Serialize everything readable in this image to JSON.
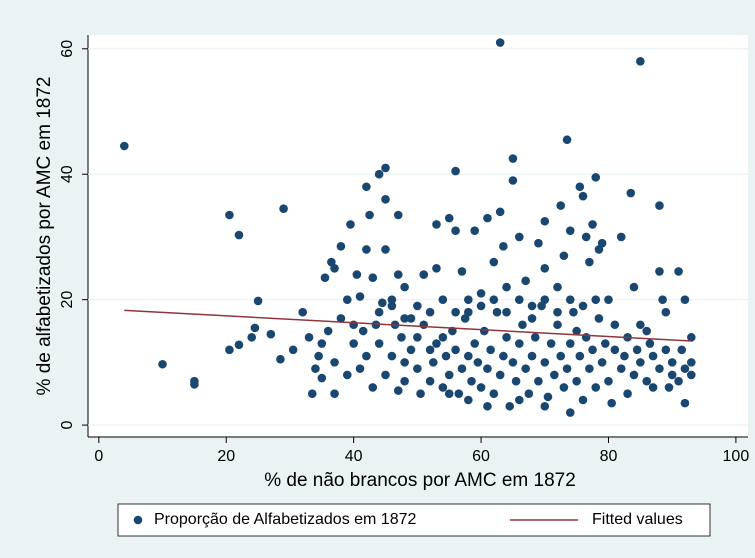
{
  "chart_data": {
    "type": "scatter",
    "x_label": "% de não brancos por AMC em 1872",
    "y_label": "% de alfabetizados por AMC em 1872",
    "xlim": [
      -1.7,
      101.9
    ],
    "ylim": [
      -1.9,
      62.2
    ],
    "xticks": [
      0,
      20,
      40,
      60,
      80,
      100
    ],
    "yticks": [
      0,
      20,
      40,
      60
    ],
    "grid": "y",
    "legend": "bottom",
    "series": [
      {
        "name": "Proporção de Alfabetizados em 1872",
        "color": "#1a476f",
        "type": "scatter",
        "x": [
          4,
          10,
          15,
          15,
          20.5,
          22,
          20.5,
          22,
          25,
          24.5,
          24,
          27,
          29,
          28.5,
          30.5,
          32,
          33,
          33.5,
          34,
          34.5,
          35,
          35.5,
          36,
          36.5,
          37,
          37,
          38,
          39,
          39.5,
          40,
          40.5,
          41,
          41.5,
          42,
          42,
          42.5,
          43,
          43.5,
          44,
          44.5,
          45,
          45,
          45,
          46,
          46.5,
          47,
          47,
          48,
          48,
          49,
          50,
          51,
          52,
          53,
          53,
          54,
          55,
          56,
          56,
          57,
          58,
          59,
          60,
          61,
          62,
          63,
          63,
          63.5,
          64,
          65,
          65,
          66,
          67,
          68,
          69,
          70,
          70,
          72,
          72.5,
          73,
          73.5,
          74,
          74,
          75,
          75.5,
          76,
          76.5,
          77,
          77.5,
          78,
          78.5,
          79,
          80,
          81,
          82,
          83,
          83.5,
          84,
          85,
          85,
          86,
          87,
          88,
          88,
          88.5,
          89,
          90,
          91,
          91.5,
          92,
          92,
          93,
          93,
          41,
          42,
          43,
          44,
          45,
          46,
          47,
          47.5,
          48,
          49,
          50,
          50.5,
          51,
          52,
          52.5,
          53,
          54,
          54.5,
          55,
          55.5,
          56,
          56.5,
          57,
          57.5,
          58,
          58.5,
          59,
          59.5,
          60,
          60.5,
          61,
          61.5,
          62,
          62.5,
          63,
          63.5,
          64,
          64.5,
          65,
          65.5,
          66,
          66.5,
          67,
          67.5,
          68,
          68.5,
          69,
          69.5,
          70,
          70.5,
          71,
          71.5,
          72,
          72.5,
          73,
          73.5,
          74,
          74.5,
          75,
          75.5,
          76,
          76.5,
          77,
          77.5,
          78,
          78.5,
          79,
          79.5,
          80,
          80.5,
          81,
          82,
          82.5,
          83,
          84,
          84.5,
          85,
          86,
          86.5,
          87,
          88,
          89,
          89.5,
          90,
          91,
          92,
          93,
          44,
          46,
          48,
          50,
          52,
          54,
          56,
          58,
          60,
          62,
          64,
          66,
          68,
          70,
          72,
          74,
          76,
          78,
          55,
          58,
          61,
          66,
          70,
          35,
          37,
          38,
          39,
          40
        ],
        "values": [
          44.5,
          9.7,
          6.5,
          7,
          33.5,
          30.3,
          12,
          12.8,
          19.8,
          15.5,
          14,
          14.5,
          34.5,
          10.5,
          12,
          18,
          14,
          5,
          9,
          11,
          7.5,
          23.5,
          15,
          26,
          5,
          25,
          28.5,
          20,
          32,
          13,
          24,
          20.5,
          15,
          38,
          28,
          33.5,
          23.5,
          16,
          40,
          19.5,
          41,
          36,
          28,
          20,
          16,
          33.5,
          24,
          22,
          10,
          17,
          14,
          24,
          12,
          32,
          25,
          14,
          33,
          40.5,
          31,
          24.5,
          18,
          31,
          21,
          33,
          26,
          61,
          34,
          28.5,
          22,
          42.5,
          39,
          30,
          23,
          17,
          29,
          32.5,
          25,
          22,
          35,
          27,
          45.5,
          31,
          2,
          15,
          38,
          36.5,
          30,
          26,
          32,
          39.5,
          28,
          29,
          20,
          12,
          30,
          5,
          37,
          22,
          58,
          16,
          15,
          6,
          35,
          24.5,
          20,
          18,
          8,
          24.5,
          12,
          20,
          3.5,
          14,
          10,
          9,
          11,
          6,
          13,
          8,
          11,
          5.5,
          14,
          7,
          12,
          9,
          5,
          16,
          7,
          10,
          13,
          6,
          11,
          8,
          15,
          12,
          5,
          9,
          17,
          11,
          7,
          13,
          10,
          6,
          15,
          9,
          12,
          5,
          18,
          8,
          11,
          14,
          3,
          10,
          7,
          13,
          16,
          9,
          5,
          11,
          14,
          7,
          19,
          10,
          4.5,
          13,
          8,
          16,
          11,
          6,
          9,
          13,
          18,
          7,
          11,
          4,
          14,
          9,
          12,
          6,
          17,
          10,
          13,
          7,
          3.5,
          16,
          9,
          11,
          14,
          8,
          12,
          10,
          7,
          13,
          11,
          9,
          12,
          6,
          10,
          7,
          9,
          8,
          18,
          19,
          17,
          19,
          18,
          20,
          18,
          20,
          19,
          20,
          18,
          20,
          19,
          20,
          18,
          20,
          19,
          20,
          5,
          4,
          3,
          4,
          3,
          13,
          10,
          17,
          8,
          16
        ]
      },
      {
        "name": "Fitted values",
        "color": "#90353b",
        "type": "line",
        "x": [
          4,
          93
        ],
        "values": [
          18.3,
          13.4
        ]
      }
    ]
  }
}
